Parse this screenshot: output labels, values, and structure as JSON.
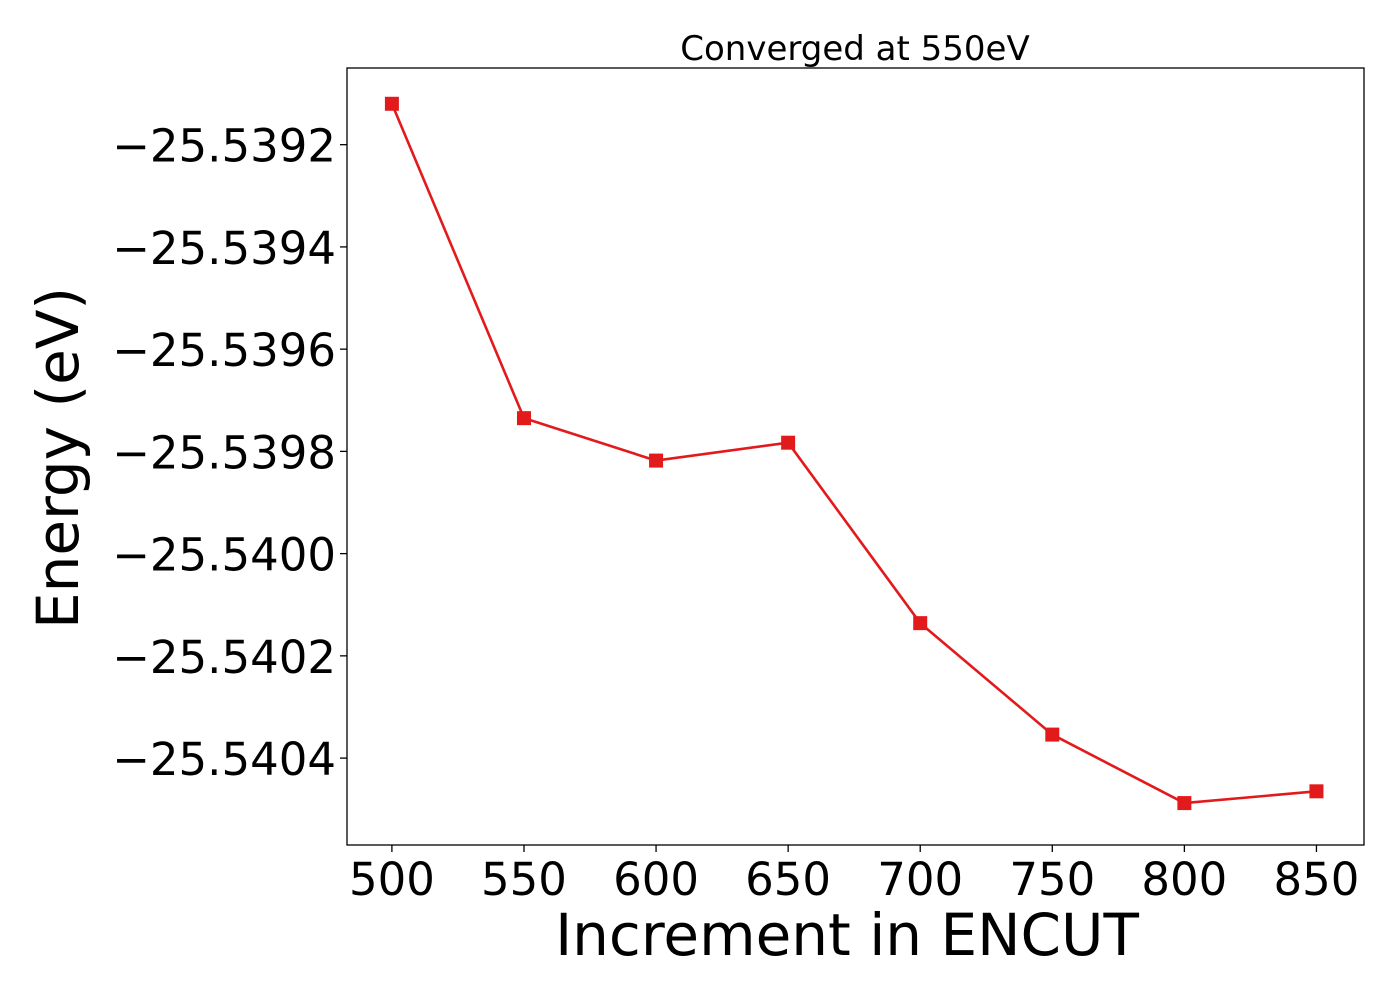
{
  "chart_data": {
    "type": "line",
    "title": "Converged at 550eV",
    "xlabel": "Increment in ENCUT",
    "ylabel": "Energy (eV)",
    "x": [
      500,
      550,
      600,
      650,
      700,
      750,
      800,
      850
    ],
    "xticks": [
      500,
      550,
      600,
      650,
      700,
      750,
      800,
      850
    ],
    "xtick_labels": [
      "500",
      "550",
      "600",
      "650",
      "700",
      "750",
      "800",
      "850"
    ],
    "yticks": [
      -25.5392,
      -25.5394,
      -25.5396,
      -25.5398,
      -25.54,
      -25.5402,
      -25.5404
    ],
    "ytick_labels": [
      "−25.5392",
      "−25.5394",
      "−25.5396",
      "−25.5398",
      "−25.5400",
      "−25.5402",
      "−25.5404"
    ],
    "xlim": [
      483,
      868
    ],
    "ylim": [
      -25.54057,
      -25.53905
    ],
    "series": [
      {
        "values": [
          -25.53912,
          -25.539735,
          -25.539818,
          -25.539783,
          -25.540136,
          -25.540354,
          -25.540488,
          -25.540465
        ],
        "color": "#e31a1c",
        "marker": "square"
      }
    ],
    "grid": false,
    "legend": "none"
  }
}
